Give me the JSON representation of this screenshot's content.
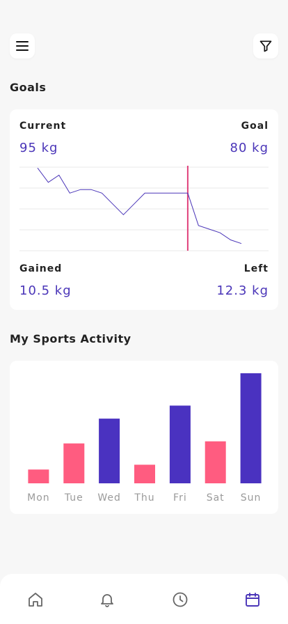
{
  "header": {
    "menu_icon": "menu-icon",
    "filter_icon": "filter-icon"
  },
  "goals": {
    "title": "Goals",
    "current_label": "Current",
    "current_value": "95 kg",
    "goal_label": "Goal",
    "goal_value": "80 kg",
    "gained_label": "Gained",
    "gained_value": "10.5 kg",
    "left_label": "Left",
    "left_value": "12.3 kg"
  },
  "activity": {
    "title": "My Sports Activity"
  },
  "chart_data": [
    {
      "type": "line",
      "y": [
        95,
        91,
        93,
        88,
        89,
        89,
        88,
        85,
        82,
        85,
        88,
        88,
        88,
        88,
        88,
        79,
        78,
        77,
        75,
        74
      ],
      "x": [
        0,
        1,
        2,
        3,
        4,
        5,
        6,
        7,
        8,
        9,
        10,
        11,
        12,
        13,
        14,
        15,
        16,
        17,
        18,
        19
      ],
      "ylim": [
        72,
        96
      ],
      "grid": true,
      "marker_index": 14,
      "colors": {
        "line": "#4a35b8",
        "marker": "#e0407a",
        "grid": "#e8e8e8"
      }
    },
    {
      "type": "bar",
      "categories": [
        "Mon",
        "Tue",
        "Wed",
        "Thu",
        "Fri",
        "Sat",
        "Sun"
      ],
      "values": [
        20,
        58,
        94,
        27,
        113,
        61,
        160
      ],
      "ylim": [
        0,
        165
      ],
      "colors": [
        "#ff5c80",
        "#ff5c80",
        "#4a32c0",
        "#ff5c80",
        "#4a32c0",
        "#ff5c80",
        "#4a32c0"
      ]
    }
  ],
  "bottom_nav": {
    "items": [
      {
        "icon": "home-icon"
      },
      {
        "icon": "bell-icon"
      },
      {
        "icon": "clock-icon"
      },
      {
        "icon": "calendar-icon",
        "active": true
      }
    ],
    "active_color": "#4a35b8",
    "inactive_color": "#666666"
  }
}
